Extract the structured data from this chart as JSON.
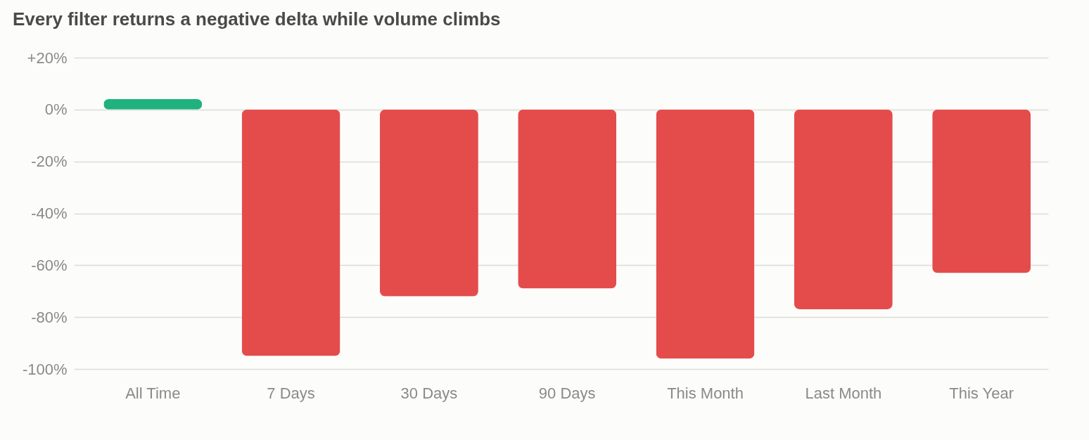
{
  "chart_data": {
    "type": "bar",
    "title": "Every filter returns a negative delta while volume climbs",
    "categories": [
      "All Time",
      "7 Days",
      "30 Days",
      "90 Days",
      "This Month",
      "Last Month",
      "This Year"
    ],
    "values": [
      4,
      -95,
      -72,
      -69,
      -96,
      -77,
      -63
    ],
    "colors": [
      "#1fb27c",
      "#e44c4c",
      "#e44c4c",
      "#e44c4c",
      "#e44c4c",
      "#e44c4c",
      "#e44c4c"
    ],
    "ylim": [
      -100,
      20
    ],
    "yticks": [
      {
        "value": 20,
        "label": "+20%"
      },
      {
        "value": 0,
        "label": "0%"
      },
      {
        "value": -20,
        "label": "-20%"
      },
      {
        "value": -40,
        "label": "-40%"
      },
      {
        "value": -60,
        "label": "-60%"
      },
      {
        "value": -80,
        "label": "-80%"
      },
      {
        "value": -100,
        "label": "-100%"
      }
    ],
    "grid": "y"
  }
}
